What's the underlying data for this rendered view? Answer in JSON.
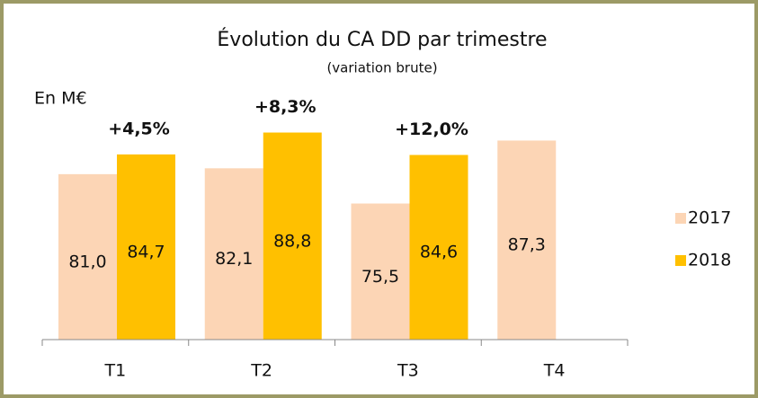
{
  "chart_data": {
    "type": "bar",
    "title": "Évolution du CA DD par trimestre",
    "subtitle": "(variation brute)",
    "ylabel": "En M€",
    "categories": [
      "T1",
      "T2",
      "T3",
      "T4"
    ],
    "series": [
      {
        "name": "2017",
        "color": "#fcd5b5",
        "values": [
          81.0,
          82.1,
          75.5,
          87.3
        ],
        "value_labels": [
          "81,0",
          "82,1",
          "75,5",
          "87,3"
        ]
      },
      {
        "name": "2018",
        "color": "#ffc000",
        "values": [
          84.7,
          88.8,
          84.6,
          null
        ],
        "value_labels": [
          "84,7",
          "88,8",
          "84,6",
          null
        ]
      }
    ],
    "annotations": [
      "+4,5%",
      "+8,3%",
      "+12,0%"
    ],
    "ylim": [
      50,
      100
    ],
    "legend": "right"
  }
}
